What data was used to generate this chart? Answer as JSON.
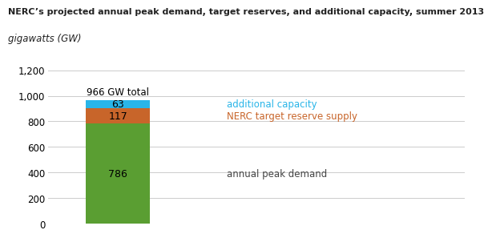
{
  "title_line1": "NERC’s projected annual peak demand, target reserves, and additional capacity, summer 2013",
  "title_line2": "gigawatts (GW)",
  "values": {
    "annual_peak_demand": 786,
    "nerc_target_reserve": 117,
    "additional_capacity": 63
  },
  "colors": {
    "annual_peak_demand": "#5a9e32",
    "nerc_target_reserve": "#c8652a",
    "additional_capacity": "#29b5e8"
  },
  "total_label": "966 GW total",
  "labels": {
    "annual_peak_demand": "annual peak demand",
    "nerc_target_reserve": "NERC target reserve supply",
    "additional_capacity": "additional capacity"
  },
  "label_colors": {
    "annual_peak_demand": "#444444",
    "nerc_target_reserve": "#c8652a",
    "additional_capacity": "#29b5e8"
  },
  "ylim": [
    0,
    1200
  ],
  "yticks": [
    0,
    200,
    400,
    600,
    800,
    1000,
    1200
  ],
  "bar_width": 0.55,
  "background_color": "#ffffff",
  "grid_color": "#cccccc",
  "title_color": "#222222",
  "title_fontsize": 8.0,
  "subtitle_fontsize": 8.5,
  "label_fontsize": 8.5,
  "value_fontsize": 9.0
}
